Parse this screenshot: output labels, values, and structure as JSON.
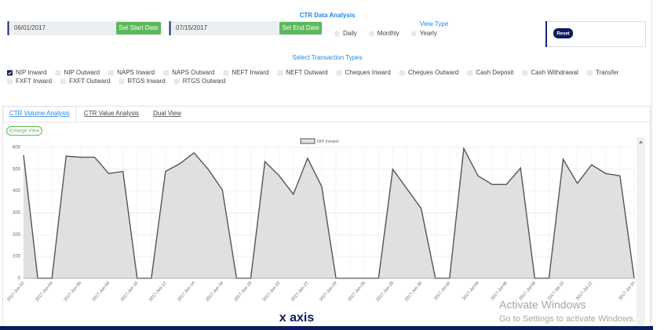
{
  "title": "CTR Data Analysis",
  "start_date": {
    "value": "06/01/2017",
    "button": "Set Start Date"
  },
  "end_date": {
    "value": "07/15/2017",
    "button": "Set End Date"
  },
  "view_type": {
    "label": "View Type",
    "options": [
      "Daily",
      "Monthly",
      "Yearly"
    ]
  },
  "reset": "Reset",
  "transaction_types": {
    "label": "Select Transaction Types",
    "options": [
      "NIP Inward",
      "NIP Outward",
      "NAPS Inward",
      "NAPS Outward",
      "NEFT Inward",
      "NEFT Outward",
      "Cheques Inward",
      "Cheques Outward",
      "Cash Deposit",
      "Cash Withdrawal",
      "Transfer",
      "FXFT Inward",
      "FXFT Outward",
      "RTGS Inward",
      "RTGS Outward"
    ],
    "checked": [
      true,
      false,
      false,
      false,
      false,
      false,
      false,
      false,
      false,
      false,
      false,
      false,
      false,
      false,
      false
    ]
  },
  "tabs": {
    "items": [
      "CTR Volume Analysis",
      "CTR Value Analysis",
      "Dual View"
    ],
    "active": 0
  },
  "enlarge_view": "Enlarge View",
  "chart_data": {
    "type": "line",
    "fill": true,
    "grid": true,
    "legend": "top",
    "categories": [
      "2017-Jun-02",
      null,
      "2017-Jun-04",
      null,
      "2017-Jun-06",
      null,
      "2017-Jun-08",
      null,
      "2017-Jun-10",
      null,
      "2017-Jun-12",
      null,
      "2017-Jun-14",
      null,
      "2017-Jun-16",
      null,
      "2017-Jun-18",
      null,
      "2017-Jun-20",
      null,
      "2017-Jun-22",
      null,
      "2017-Jun-24",
      null,
      "2017-Jun-26",
      null,
      "2017-Jun-28",
      null,
      "2017-Jun-30",
      null,
      "2017-Jul-02",
      null,
      "2017-Jul-04",
      null,
      "2017-Jul-06",
      null,
      "2017-Jul-08",
      null,
      "2017-Jul-10",
      null,
      "2017-Jul-12",
      null,
      null,
      "2017-Jul-15"
    ],
    "series": [
      {
        "name": "NIP Inward",
        "color": "#555555",
        "fill_color": "#e0e0e2",
        "values": [
          565,
          0,
          0,
          560,
          555,
          555,
          480,
          490,
          0,
          0,
          490,
          525,
          575,
          500,
          405,
          0,
          0,
          535,
          470,
          385,
          550,
          420,
          0,
          0,
          0,
          0,
          500,
          410,
          320,
          0,
          0,
          595,
          470,
          430,
          430,
          505,
          0,
          0,
          545,
          435,
          520,
          480,
          470,
          0
        ]
      }
    ],
    "ylim": [
      0,
      600
    ],
    "yticks": [
      0,
      100,
      200,
      300,
      400,
      500,
      600
    ]
  },
  "annotation": "x axis",
  "watermark": {
    "title": "Activate Windows",
    "subtitle": "Go to Settings to activate Windows."
  }
}
